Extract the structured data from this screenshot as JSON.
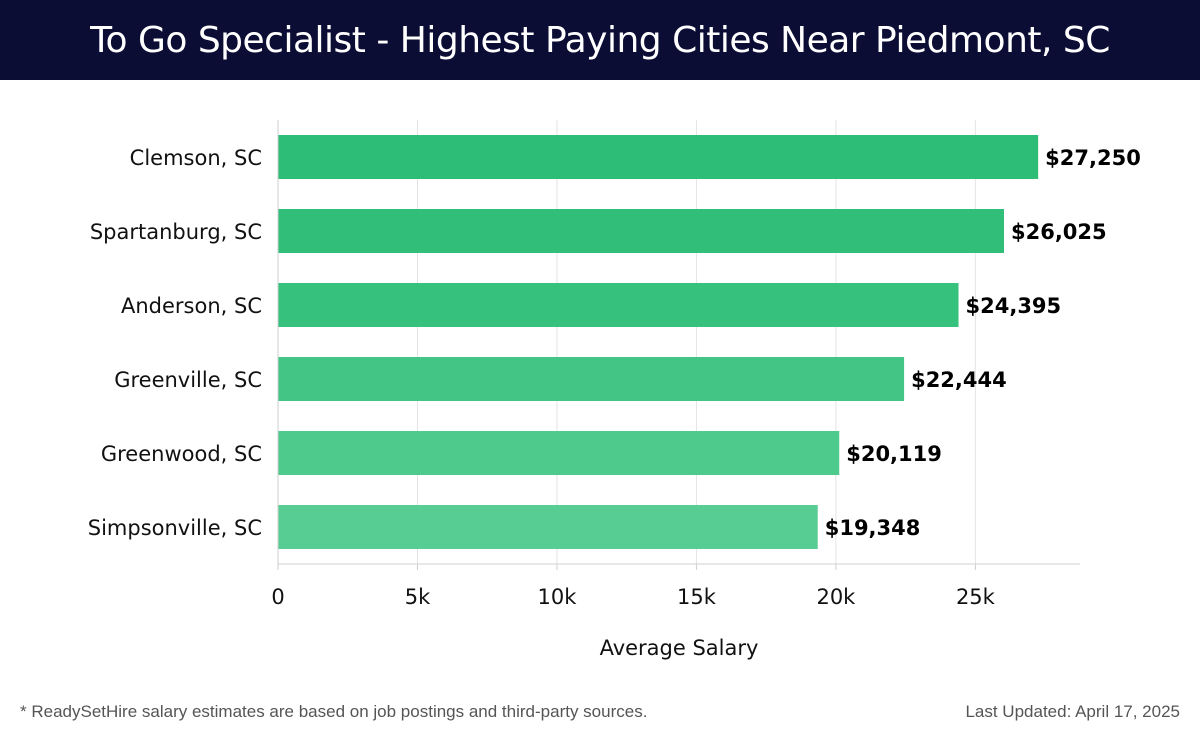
{
  "header": {
    "title": "To Go Specialist - Highest Paying Cities Near Piedmont, SC"
  },
  "chart_data": {
    "type": "bar",
    "orientation": "horizontal",
    "categories": [
      "Clemson, SC",
      "Spartanburg, SC",
      "Anderson, SC",
      "Greenville, SC",
      "Greenwood, SC",
      "Simpsonville, SC"
    ],
    "values": [
      27250,
      26025,
      24395,
      22444,
      20119,
      19348
    ],
    "value_labels": [
      "$27,250",
      "$26,025",
      "$24,395",
      "$22,444",
      "$20,119",
      "$19,348"
    ],
    "colors": [
      "#2dbd76",
      "#30be78",
      "#36c17d",
      "#43c585",
      "#4fca8d",
      "#58cd93"
    ],
    "xlabel": "Average Salary",
    "ylabel": "",
    "xlim": [
      0,
      28750
    ],
    "xticks": [
      0,
      5000,
      10000,
      15000,
      20000,
      25000
    ],
    "xtick_labels": [
      "0",
      "5k",
      "10k",
      "15k",
      "20k",
      "25k"
    ],
    "grid": true
  },
  "footer": {
    "note": "* ReadySetHire salary estimates are based on job postings and third-party sources.",
    "updated": "Last Updated: April 17, 2025"
  }
}
